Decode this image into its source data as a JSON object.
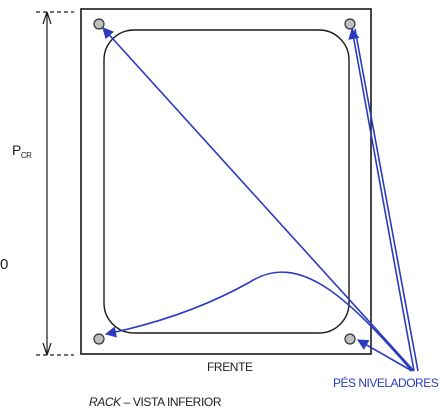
{
  "diagram": {
    "depth_label": "P",
    "depth_subscript": "CR",
    "zero_label": "0",
    "front_label": "FRENTE",
    "feet_label": "PÉS NIVELADORES",
    "caption_italic": "RACK",
    "caption_rest": " – VISTA INFERIOR",
    "colors": {
      "outline": "#1a1a1a",
      "arrow": "#2b3bbf",
      "foot_fill": "#bfbfbf"
    }
  }
}
